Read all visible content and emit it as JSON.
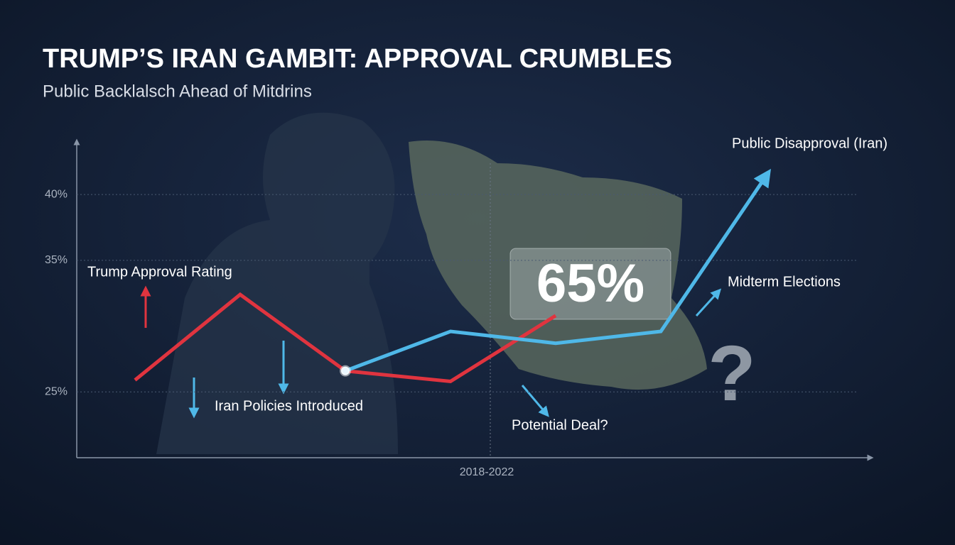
{
  "chart_data": {
    "type": "line",
    "title": "TRUMP’S IRAN GAMBIT: APPROVAL CRUMBLES",
    "subtitle": "Public Backlalsch Ahead of Mitdrins",
    "x_label": "2018-2022",
    "categories": [
      null,
      null,
      null,
      null,
      null,
      null,
      null
    ],
    "series": [
      {
        "name": "Trump Approval Rating",
        "color": "#e0343f",
        "values": [
          25.9,
          32.4,
          26.6,
          25.8,
          30.8,
          null,
          null
        ]
      },
      {
        "name": "Public Disapproval (Iran)",
        "color": "#4fb8e8",
        "values": [
          null,
          null,
          26.6,
          29.6,
          28.7,
          29.6,
          41.4
        ]
      }
    ],
    "ylim": [
      20,
      44
    ],
    "yticks": [
      {
        "value": 25,
        "label": "25%"
      },
      {
        "value": 35,
        "label": "35%"
      },
      {
        "value": 40,
        "label": "40%"
      }
    ],
    "grid": true,
    "annotations": [
      "Iran Policies Introduced",
      "Potential Deal?",
      "Midterm Elections",
      "65%",
      "?"
    ]
  }
}
